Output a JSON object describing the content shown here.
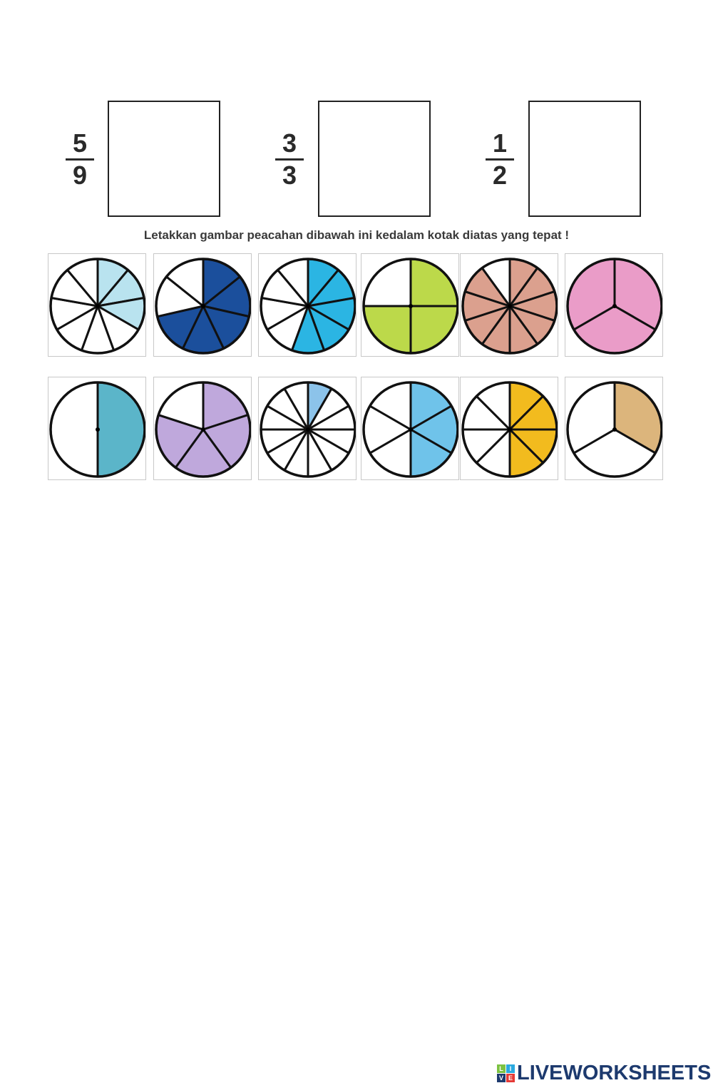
{
  "targets": [
    {
      "numerator": "5",
      "denominator": "9"
    },
    {
      "numerator": "3",
      "denominator": "3"
    },
    {
      "numerator": "1",
      "denominator": "2"
    }
  ],
  "instruction": "Letakkan gambar peacahan dibawah  ini kedalam kotak diatas yang tepat !",
  "pieces": [
    {
      "parts": 9,
      "shaded": 3,
      "color": "#b9e3ef"
    },
    {
      "parts": 7,
      "shaded": 5,
      "color": "#1b4f9c"
    },
    {
      "parts": 9,
      "shaded": 5,
      "color": "#2bb5e3"
    },
    {
      "parts": 4,
      "shaded": 3,
      "color": "#bcd94a"
    },
    {
      "parts": 10,
      "shaded": 9,
      "color": "#dba08e"
    },
    {
      "parts": 3,
      "shaded": 3,
      "color": "#ea9cc8"
    },
    {
      "parts": 2,
      "shaded": 1,
      "color": "#5bb5c9"
    },
    {
      "parts": 5,
      "shaded": 4,
      "color": "#bfa8dc"
    },
    {
      "parts": 12,
      "shaded": 1,
      "color": "#8cc3ea"
    },
    {
      "parts": 6,
      "shaded": 3,
      "color": "#6fc3ea"
    },
    {
      "parts": 8,
      "shaded": 4,
      "color": "#f2bb1e"
    },
    {
      "parts": 3,
      "shaded": 1,
      "color": "#dcb57c"
    }
  ],
  "logo": {
    "text": "LIVEWORKSHEETS",
    "mark": [
      "L",
      "I",
      "V",
      "E"
    ],
    "mark_colors": [
      "#7cc242",
      "#2aa9e0",
      "#1d3a6e",
      "#e53935"
    ]
  }
}
